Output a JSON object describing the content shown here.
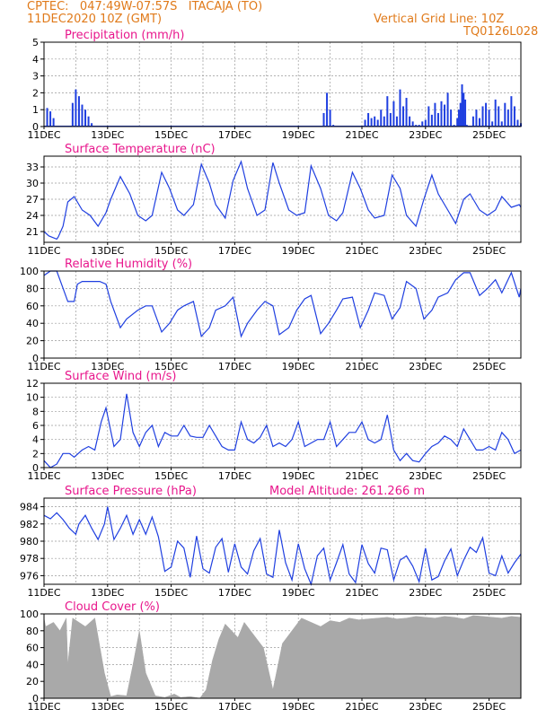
{
  "header": {
    "line1": "CPTEC:   047:49W-07:57S   ITACAJA (TO)",
    "line2": "11DEC2020 10Z (GMT)",
    "grid_note": "Vertical Grid Line: 10Z",
    "code": "TQ0126L028"
  },
  "model_altitude": "Model Altitude: 261.266 m",
  "colors": {
    "header": "#e07a1a",
    "title": "#e8168c",
    "line": "#1f3fe0",
    "bar": "#1f3fe0",
    "cloud": "#a9a9a9"
  },
  "x_tick_labels": [
    "11DEC",
    "13DEC",
    "15DEC",
    "17DEC",
    "19DEC",
    "21DEC",
    "23DEC",
    "25DEC"
  ],
  "chart_data": [
    {
      "id": "precip",
      "type": "bar",
      "title": "Precipitation (mm/h)",
      "ylim": [
        0,
        5
      ],
      "yticks": [
        0,
        1,
        2,
        3,
        4,
        5
      ],
      "series": [
        {
          "x": [
            0.1,
            0.2,
            0.3,
            0.9,
            1.0,
            1.1,
            1.2,
            1.3,
            1.4,
            1.5,
            5.1,
            5.2,
            5.3,
            8.8,
            8.9,
            9.0,
            9.1,
            9.2,
            9.3,
            9.4,
            9.45,
            9.5,
            9.55,
            9.6,
            9.7,
            9.8,
            9.9,
            10.0,
            10.1,
            10.2,
            10.3,
            10.4,
            10.5,
            10.6,
            10.7,
            10.8,
            10.9,
            11.0,
            11.1,
            11.2,
            11.3,
            11.4,
            11.5,
            11.6,
            11.7,
            11.8,
            11.9,
            12.0,
            12.1,
            12.2,
            12.3,
            12.4,
            12.5,
            12.6,
            12.7,
            12.8,
            12.9,
            13.0,
            13.05,
            13.1,
            13.15,
            13.2,
            13.25,
            13.3,
            13.4,
            13.5,
            13.6,
            13.7,
            13.8,
            13.9,
            14.0,
            14.1,
            14.2,
            14.3,
            14.4,
            14.5,
            14.6,
            14.7,
            14.8,
            14.9,
            15.0
          ],
          "values": [
            1.1,
            0.9,
            0.5,
            1.4,
            2.2,
            1.8,
            1.3,
            1.0,
            0.6,
            0.2,
            0.05,
            0.05,
            0.05,
            0.8,
            2.0,
            1.0,
            0.1,
            0.05,
            0.05,
            0.05,
            0.05,
            0.05,
            0.05,
            0.05,
            0.05,
            0.05,
            0.05,
            0.05,
            0.4,
            0.8,
            0.5,
            0.6,
            0.4,
            1.0,
            0.6,
            1.8,
            0.8,
            1.5,
            0.6,
            2.2,
            1.2,
            1.7,
            0.6,
            0.3,
            0.1,
            0.1,
            0.3,
            0.4,
            1.2,
            0.7,
            1.4,
            0.8,
            1.5,
            1.3,
            2.0,
            1.0,
            0.1,
            0.5,
            1.0,
            1.4,
            2.5,
            2.0,
            1.6,
            0.1,
            0.05,
            0.6,
            1.0,
            0.5,
            1.2,
            1.4,
            1.0,
            0.3,
            1.6,
            1.2,
            0.3,
            1.4,
            1.0,
            1.8,
            1.2,
            0.4,
            0.2
          ]
        }
      ]
    },
    {
      "id": "temp",
      "type": "line",
      "title": "Surface Temperature (nC)",
      "ylim": [
        19,
        35
      ],
      "yticks": [
        21,
        24,
        27,
        30,
        33
      ],
      "series": [
        {
          "x": [
            0,
            0.15,
            0.4,
            0.45,
            0.6,
            0.75,
            0.95,
            1.2,
            1.45,
            1.7,
            1.95,
            2.1,
            2.4,
            2.7,
            2.95,
            3.2,
            3.4,
            3.7,
            3.95,
            4.2,
            4.4,
            4.7,
            4.95,
            5.2,
            5.4,
            5.7,
            5.95,
            6.2,
            6.4,
            6.7,
            6.95,
            7.2,
            7.4,
            7.7,
            7.95,
            8.2,
            8.4,
            8.7,
            8.95,
            9.2,
            9.4,
            9.7,
            9.95,
            10.2,
            10.4,
            10.7,
            10.95,
            11.2,
            11.4,
            11.7,
            11.95,
            12.2,
            12.4,
            12.7,
            12.95,
            13.2,
            13.4,
            13.7,
            13.95,
            14.2,
            14.4,
            14.7,
            14.95,
            15.0
          ],
          "values": [
            21,
            20.2,
            19.6,
            20,
            22,
            26.5,
            27.5,
            25,
            24,
            22,
            24.5,
            27,
            31.2,
            28,
            24,
            23,
            24,
            32,
            29,
            25,
            24,
            26,
            33.5,
            30,
            26,
            23.5,
            30.5,
            34,
            29,
            24,
            25,
            33.8,
            30,
            25,
            24,
            24.5,
            33.2,
            29,
            24,
            23,
            24.5,
            32,
            29,
            25,
            23.5,
            24,
            31.5,
            29,
            24,
            22,
            27,
            31.5,
            28,
            25,
            22.5,
            27,
            28,
            25,
            24,
            25,
            27.5,
            25.5,
            26,
            25.5
          ]
        }
      ]
    },
    {
      "id": "rh",
      "type": "line",
      "title": "Relative Humidity (%)",
      "ylim": [
        0,
        100
      ],
      "yticks": [
        0,
        20,
        40,
        60,
        80,
        100
      ],
      "series": [
        {
          "x": [
            0,
            0.2,
            0.4,
            0.55,
            0.75,
            0.95,
            1.05,
            1.2,
            1.5,
            1.75,
            1.95,
            2.1,
            2.4,
            2.6,
            2.95,
            3.2,
            3.4,
            3.7,
            3.95,
            4.2,
            4.4,
            4.7,
            4.95,
            5.2,
            5.4,
            5.7,
            5.95,
            6.2,
            6.4,
            6.7,
            6.95,
            7.2,
            7.4,
            7.7,
            7.95,
            8.2,
            8.4,
            8.7,
            8.95,
            9.2,
            9.4,
            9.7,
            9.95,
            10.2,
            10.4,
            10.7,
            10.95,
            11.2,
            11.4,
            11.7,
            11.95,
            12.2,
            12.4,
            12.7,
            12.95,
            13.2,
            13.4,
            13.7,
            13.95,
            14.2,
            14.4,
            14.7,
            14.95,
            15.0
          ],
          "values": [
            95,
            100,
            100,
            85,
            65,
            65,
            85,
            88,
            88,
            88,
            85,
            65,
            35,
            45,
            55,
            60,
            60,
            30,
            40,
            55,
            60,
            65,
            25,
            35,
            55,
            60,
            70,
            25,
            40,
            55,
            65,
            60,
            27,
            35,
            55,
            68,
            72,
            28,
            40,
            55,
            68,
            70,
            35,
            55,
            75,
            72,
            45,
            58,
            88,
            80,
            45,
            55,
            70,
            75,
            90,
            98,
            98,
            72,
            80,
            90,
            75,
            98,
            70,
            80
          ]
        }
      ]
    },
    {
      "id": "wind",
      "type": "line",
      "title": "Surface Wind (m/s)",
      "ylim": [
        0,
        12
      ],
      "yticks": [
        0,
        2,
        4,
        6,
        8,
        10,
        12
      ],
      "series": [
        {
          "x": [
            0,
            0.2,
            0.4,
            0.6,
            0.8,
            0.95,
            1.2,
            1.4,
            1.6,
            1.8,
            1.95,
            2.2,
            2.4,
            2.6,
            2.8,
            3.0,
            3.2,
            3.4,
            3.6,
            3.8,
            4.0,
            4.2,
            4.4,
            4.6,
            4.8,
            5.0,
            5.2,
            5.4,
            5.6,
            5.8,
            6.0,
            6.2,
            6.4,
            6.6,
            6.8,
            7.0,
            7.2,
            7.4,
            7.6,
            7.8,
            8.0,
            8.2,
            8.4,
            8.6,
            8.8,
            9.0,
            9.2,
            9.4,
            9.6,
            9.8,
            10.0,
            10.2,
            10.4,
            10.6,
            10.8,
            11.0,
            11.2,
            11.4,
            11.6,
            11.8,
            12.0,
            12.2,
            12.4,
            12.6,
            12.8,
            13.0,
            13.2,
            13.4,
            13.6,
            13.8,
            14.0,
            14.2,
            14.4,
            14.6,
            14.8,
            15.0
          ],
          "values": [
            1,
            0,
            0.5,
            2,
            2,
            1.5,
            2.5,
            3,
            2.5,
            6.5,
            8.5,
            3,
            4,
            10.5,
            5,
            3,
            5,
            6,
            3,
            5,
            4.5,
            4.5,
            6,
            4.5,
            4.3,
            4.3,
            6,
            4.5,
            3,
            2.5,
            2.5,
            6.5,
            4,
            3.5,
            4.3,
            6,
            3,
            3.5,
            3,
            4,
            6.5,
            3,
            3.5,
            4,
            4,
            6.5,
            3,
            4,
            5,
            5,
            6.5,
            4,
            3.5,
            4,
            7.5,
            2.5,
            1,
            2,
            1,
            0.8,
            2,
            3,
            3.5,
            4.5,
            4,
            3,
            5.5,
            4,
            2.5,
            2.5,
            3,
            2.5,
            5,
            4,
            2,
            2.5
          ]
        }
      ]
    },
    {
      "id": "pres",
      "type": "line",
      "title": "Surface Pressure (hPa)",
      "ylim": [
        975,
        985
      ],
      "yticks": [
        976,
        978,
        980,
        982,
        984
      ],
      "series": [
        {
          "x": [
            0,
            0.2,
            0.4,
            0.6,
            0.8,
            1.0,
            1.1,
            1.3,
            1.5,
            1.7,
            1.9,
            2.0,
            2.2,
            2.4,
            2.6,
            2.8,
            3.0,
            3.2,
            3.4,
            3.6,
            3.8,
            4.0,
            4.2,
            4.4,
            4.6,
            4.8,
            5.0,
            5.2,
            5.4,
            5.6,
            5.8,
            6.0,
            6.2,
            6.4,
            6.6,
            6.8,
            7.0,
            7.2,
            7.4,
            7.6,
            7.8,
            8.0,
            8.2,
            8.4,
            8.6,
            8.8,
            9.0,
            9.2,
            9.4,
            9.6,
            9.8,
            10.0,
            10.2,
            10.4,
            10.6,
            10.8,
            11.0,
            11.2,
            11.4,
            11.6,
            11.8,
            12.0,
            12.2,
            12.4,
            12.6,
            12.8,
            13.0,
            13.2,
            13.4,
            13.6,
            13.8,
            14.0,
            14.2,
            14.4,
            14.6,
            14.8,
            15.0
          ],
          "values": [
            983,
            982.6,
            983.3,
            982.5,
            981.5,
            980.8,
            982,
            983,
            981.5,
            980.2,
            982,
            984,
            980.2,
            981.5,
            983,
            980.8,
            982.5,
            980.8,
            982.8,
            980.5,
            976.5,
            977,
            980,
            979.2,
            975.8,
            980.6,
            976.8,
            976.3,
            979.3,
            980.3,
            976.4,
            979.7,
            977,
            976.2,
            978.9,
            980.3,
            976.2,
            975.8,
            981.3,
            977.5,
            975.5,
            979.7,
            976.8,
            975,
            978.3,
            979.2,
            975.5,
            977.5,
            979.6,
            976.2,
            975.2,
            979.6,
            977.4,
            976.3,
            979.2,
            979,
            975.5,
            977.8,
            978.3,
            977.1,
            975.3,
            979.2,
            975.5,
            975.9,
            977.7,
            979.1,
            976,
            977.8,
            979.3,
            978.7,
            980.4,
            976.3,
            976,
            978.3,
            976.3,
            977.5,
            978.5
          ]
        }
      ]
    },
    {
      "id": "cloud",
      "type": "area",
      "title": "Cloud Cover (%)",
      "ylim": [
        0,
        100
      ],
      "yticks": [
        0,
        20,
        40,
        60,
        80,
        100
      ],
      "series": [
        {
          "x": [
            0,
            0.05,
            0.3,
            0.5,
            0.7,
            0.75,
            0.9,
            1.1,
            1.3,
            1.6,
            1.9,
            2.1,
            2.3,
            2.6,
            2.8,
            3.0,
            3.2,
            3.5,
            3.8,
            4.1,
            4.3,
            4.6,
            4.9,
            5.1,
            5.3,
            5.5,
            5.7,
            5.9,
            6.1,
            6.3,
            6.6,
            6.9,
            7.2,
            7.5,
            7.8,
            8.1,
            8.4,
            8.7,
            9.0,
            9.3,
            9.6,
            9.9,
            10.2,
            10.5,
            10.8,
            11.1,
            11.4,
            11.7,
            12.0,
            12.3,
            12.6,
            12.9,
            13.2,
            13.5,
            13.8,
            14.1,
            14.4,
            14.7,
            15.0
          ],
          "values": [
            95,
            85,
            90,
            80,
            95,
            40,
            95,
            90,
            85,
            95,
            30,
            2,
            4,
            3,
            40,
            80,
            30,
            3,
            1,
            5,
            1,
            2,
            0,
            10,
            45,
            70,
            88,
            80,
            72,
            90,
            75,
            60,
            10,
            65,
            80,
            95,
            90,
            85,
            92,
            90,
            95,
            93,
            94,
            95,
            96,
            94,
            95,
            97,
            96,
            95,
            97,
            96,
            94,
            98,
            97,
            96,
            95,
            97,
            96
          ]
        }
      ]
    }
  ]
}
